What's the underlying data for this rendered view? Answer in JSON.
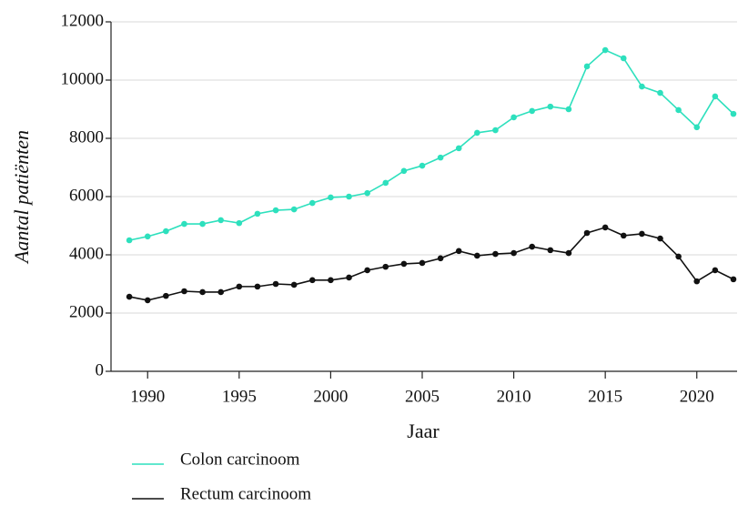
{
  "chart_data": {
    "type": "line",
    "xlabel": "Jaar",
    "ylabel": "Aantal patiënten",
    "x": [
      1989,
      1990,
      1991,
      1992,
      1993,
      1994,
      1995,
      1996,
      1997,
      1998,
      1999,
      2000,
      2001,
      2002,
      2003,
      2004,
      2005,
      2006,
      2007,
      2008,
      2009,
      2010,
      2011,
      2012,
      2013,
      2014,
      2015,
      2016,
      2017,
      2018,
      2019,
      2020,
      2021,
      2022
    ],
    "series": [
      {
        "name": "Colon carcinoom",
        "color": "#2de0bd",
        "values": [
          4500,
          4630,
          4810,
          5060,
          5060,
          5190,
          5090,
          5410,
          5530,
          5560,
          5780,
          5970,
          6000,
          6120,
          6470,
          6880,
          7060,
          7340,
          7660,
          8190,
          8280,
          8720,
          8940,
          9090,
          9000,
          10470,
          11030,
          10750,
          9780,
          9560,
          8970,
          8380,
          9440,
          8840
        ]
      },
      {
        "name": "Rectum carcinoom",
        "color": "#111111",
        "values": [
          2560,
          2440,
          2590,
          2750,
          2720,
          2720,
          2910,
          2910,
          3000,
          2970,
          3130,
          3130,
          3220,
          3470,
          3590,
          3690,
          3720,
          3880,
          4130,
          3970,
          4030,
          4060,
          4280,
          4160,
          4060,
          4750,
          4940,
          4660,
          4720,
          4560,
          3940,
          3090,
          3470,
          3160
        ]
      }
    ],
    "xlim": [
      1988,
      2022.2
    ],
    "xticks": [
      1990,
      1995,
      2000,
      2005,
      2010,
      2015,
      2020
    ],
    "ylim": [
      0,
      12000
    ],
    "yticks": [
      0,
      2000,
      4000,
      6000,
      8000,
      10000,
      12000
    ],
    "grid": true,
    "legend": "bottom"
  }
}
